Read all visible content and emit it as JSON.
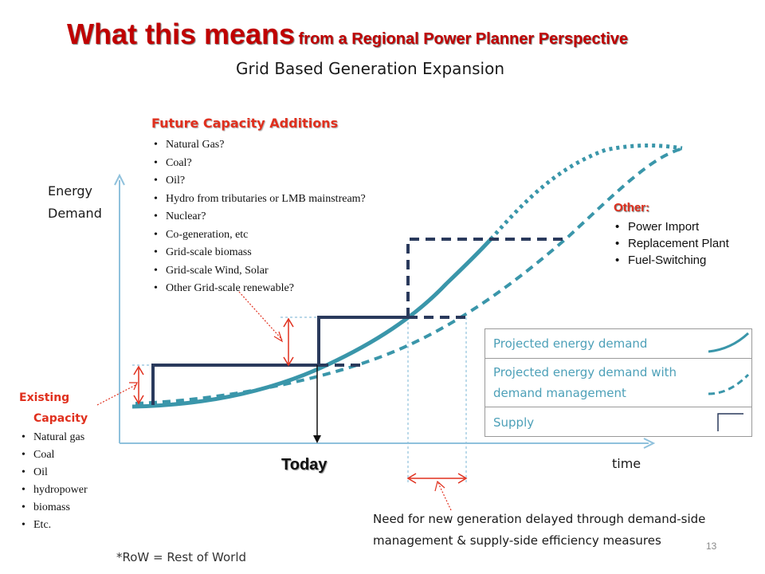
{
  "slide": {
    "title_main": "What this means",
    "title_sub": "from a Regional Power Planner Perspective",
    "subtitle": "Grid Based Generation Expansion",
    "page_number": "13",
    "footnote": "*RoW = Rest of World"
  },
  "axes": {
    "y_label_line1": "Energy",
    "y_label_line2": "Demand",
    "x_label": "time",
    "today_label": "Today"
  },
  "future_additions": {
    "title": "Future  Capacity Additions",
    "items": [
      "Natural Gas?",
      "Coal?",
      "Oil?",
      "Hydro from tributaries or LMB mainstream?",
      "Nuclear?",
      "Co-generation, etc",
      "Grid-scale biomass",
      "Grid-scale Wind, Solar",
      "Other Grid-scale renewable?"
    ]
  },
  "existing_capacity": {
    "title_line1": "Existing",
    "title_line2": "Capacity",
    "items": [
      "Natural gas",
      "Coal",
      "Oil",
      "hydropower",
      "biomass",
      "Etc."
    ]
  },
  "other": {
    "title": "Other:",
    "items": [
      "Power Import",
      "Replacement Plant",
      "Fuel-Switching"
    ]
  },
  "legend": {
    "demand": "Projected energy demand",
    "dm_line1": "Projected energy demand with",
    "dm_line2": "demand management",
    "supply": "Supply"
  },
  "need_text": {
    "line1": "Need for new generation delayed through demand-side",
    "line2": "management & supply-side efficiency measures"
  },
  "colors": {
    "title_red": "#c00000",
    "accent_red": "#e0301e",
    "demand_teal": "#3a96aa",
    "supply_navy": "#2a3a5c",
    "guide_blue": "#8fc1dc"
  }
}
